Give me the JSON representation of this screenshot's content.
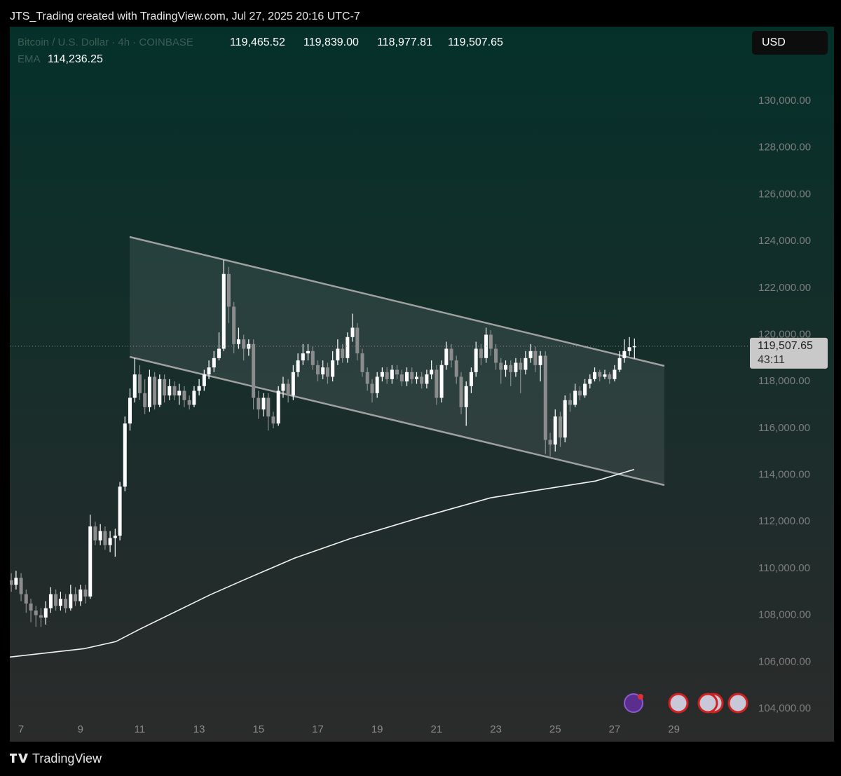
{
  "header": "JTS_Trading created with TradingView.com, Jul 27, 2025 20:16 UTC-7",
  "footer": "TradingView",
  "currency_button": "USD",
  "legend": {
    "symbol": "Bitcoin / U.S. Dollar · 4h · COINBASE",
    "ohlc": [
      "119,465.52",
      "119,839.00",
      "118,977.81",
      "119,507.65"
    ],
    "ema_name": "EMA",
    "ema_value": "114,236.25"
  },
  "last_price_label": "119,507.65",
  "countdown": "43:11",
  "chart_data": {
    "type": "candlestick",
    "x": [
      6.67,
      6.83,
      7,
      7.17,
      7.33,
      7.5,
      7.67,
      7.83,
      8,
      8.17,
      8.33,
      8.5,
      8.67,
      8.83,
      9,
      9.17,
      9.33,
      9.5,
      9.67,
      9.83,
      10,
      10.17,
      10.33,
      10.5,
      10.67,
      10.83,
      11,
      11.17,
      11.33,
      11.5,
      11.67,
      11.83,
      12,
      12.17,
      12.33,
      12.5,
      12.67,
      12.83,
      13,
      13.17,
      13.33,
      13.5,
      13.67,
      13.83,
      14,
      14.17,
      14.33,
      14.5,
      14.67,
      14.83,
      15,
      15.17,
      15.33,
      15.5,
      15.67,
      15.83,
      16,
      16.17,
      16.33,
      16.5,
      16.67,
      16.83,
      17,
      17.17,
      17.33,
      17.5,
      17.67,
      17.83,
      18,
      18.17,
      18.33,
      18.5,
      18.67,
      18.83,
      19,
      19.17,
      19.33,
      19.5,
      19.67,
      19.83,
      20,
      20.17,
      20.33,
      20.5,
      20.67,
      20.83,
      21,
      21.17,
      21.33,
      21.5,
      21.67,
      21.83,
      22,
      22.17,
      22.33,
      22.5,
      22.67,
      22.83,
      23,
      23.17,
      23.33,
      23.5,
      23.67,
      23.83,
      24,
      24.17,
      24.33,
      24.5,
      24.67,
      24.83,
      25,
      25.17,
      25.33,
      25.5,
      25.67,
      25.83,
      26,
      26.17,
      26.33,
      26.5,
      26.67,
      26.83,
      27,
      27.17,
      27.33,
      27.5,
      27.67
    ],
    "open": [
      109500,
      109300,
      109600,
      108900,
      108500,
      108200,
      108000,
      107900,
      108300,
      108900,
      108400,
      108700,
      108300,
      108900,
      108600,
      109100,
      108800,
      111800,
      111200,
      111600,
      111000,
      111300,
      111400,
      113500,
      116200,
      117300,
      118300,
      117500,
      116900,
      118200,
      117000,
      118100,
      117400,
      117800,
      117400,
      117600,
      117200,
      117000,
      117600,
      117800,
      118300,
      118600,
      119000,
      119400,
      122600,
      121200,
      119600,
      119800,
      119400,
      119600,
      117300,
      116800,
      117300,
      116500,
      116200,
      117600,
      117900,
      117400,
      118400,
      118900,
      119200,
      119300,
      118700,
      118300,
      118600,
      118200,
      118900,
      119400,
      119000,
      119900,
      120300,
      119200,
      118400,
      117900,
      117500,
      118200,
      118400,
      118100,
      118500,
      118300,
      118000,
      118400,
      118100,
      118200,
      117900,
      118300,
      118500,
      117300,
      118700,
      119400,
      118900,
      118200,
      116900,
      117800,
      118400,
      119400,
      119000,
      120000,
      119400,
      118800,
      118500,
      118700,
      118400,
      118800,
      118500,
      119000,
      119300,
      118700,
      119100,
      115500,
      115300,
      116500,
      115600,
      117200,
      117000,
      117600,
      117400,
      117900,
      118100,
      118400,
      118200,
      118300,
      118100,
      118500,
      119000,
      119300,
      119465.52
    ],
    "high": [
      109800,
      109900,
      109800,
      109100,
      108700,
      108400,
      108300,
      108600,
      109200,
      109100,
      109000,
      108900,
      109300,
      109200,
      109300,
      109300,
      112300,
      112000,
      111900,
      111800,
      111600,
      111700,
      113700,
      116500,
      117700,
      119000,
      118700,
      118100,
      118500,
      118400,
      118300,
      118300,
      118100,
      118000,
      117900,
      117800,
      117400,
      117800,
      118100,
      118500,
      118900,
      119300,
      120100,
      123200,
      122900,
      121400,
      120300,
      120000,
      119800,
      119800,
      117600,
      117500,
      117500,
      116700,
      117800,
      118200,
      118100,
      118700,
      119200,
      119600,
      119600,
      119500,
      118900,
      118900,
      118800,
      119300,
      119800,
      119600,
      120100,
      120900,
      120500,
      119400,
      118600,
      118100,
      118400,
      118600,
      118600,
      118700,
      118700,
      118500,
      118600,
      118600,
      118400,
      118400,
      118500,
      118900,
      118700,
      118900,
      119700,
      119600,
      119100,
      118400,
      118000,
      118600,
      119700,
      119600,
      120300,
      120200,
      119600,
      119000,
      118900,
      118900,
      119000,
      119000,
      119300,
      119600,
      119500,
      119300,
      119300,
      115800,
      116800,
      116700,
      117400,
      117500,
      117900,
      117800,
      118100,
      118300,
      118600,
      118500,
      118500,
      118400,
      118700,
      119300,
      119800,
      119900,
      119839
    ],
    "low": [
      109000,
      109100,
      108600,
      108100,
      107700,
      107500,
      107500,
      107600,
      108100,
      108200,
      108200,
      108100,
      108200,
      108400,
      108400,
      108500,
      108700,
      111000,
      111000,
      110800,
      110700,
      110500,
      111200,
      113300,
      115900,
      117100,
      117200,
      116600,
      116700,
      116800,
      116900,
      117100,
      117200,
      117200,
      117000,
      116900,
      116800,
      116900,
      117400,
      117600,
      118100,
      118400,
      118900,
      119300,
      120500,
      119200,
      119400,
      118900,
      119100,
      116800,
      116400,
      116500,
      115900,
      116000,
      116100,
      117300,
      117100,
      117200,
      118200,
      118700,
      118900,
      118500,
      118000,
      118100,
      117900,
      118000,
      118700,
      118800,
      118800,
      119700,
      118900,
      118200,
      117600,
      117100,
      117300,
      118000,
      117900,
      117900,
      118100,
      117800,
      117800,
      117900,
      117900,
      117700,
      117700,
      118100,
      117000,
      117100,
      118500,
      118600,
      117900,
      116600,
      116100,
      117500,
      118200,
      118700,
      118800,
      119100,
      118500,
      117900,
      118200,
      117800,
      118200,
      117500,
      118300,
      118800,
      118400,
      118000,
      114900,
      114800,
      115000,
      115200,
      115400,
      116700,
      116900,
      117200,
      117300,
      117700,
      118000,
      118000,
      118100,
      117900,
      118000,
      118400,
      118800,
      119100,
      118977.81
    ],
    "close": [
      109300,
      109600,
      108900,
      108500,
      108200,
      108000,
      107900,
      108300,
      108900,
      108400,
      108700,
      108300,
      108900,
      108600,
      109100,
      108800,
      111800,
      111200,
      111600,
      111000,
      111300,
      111400,
      113500,
      116200,
      117300,
      118300,
      117500,
      116900,
      118200,
      117000,
      118100,
      117400,
      117800,
      117400,
      117600,
      117200,
      117000,
      117600,
      117800,
      118300,
      118600,
      119000,
      119400,
      122600,
      121200,
      119600,
      119800,
      119400,
      119600,
      117300,
      116800,
      117300,
      116500,
      116200,
      117600,
      117900,
      117400,
      118400,
      118900,
      119200,
      119300,
      118700,
      118300,
      118600,
      118200,
      118900,
      119400,
      119000,
      119900,
      120300,
      119200,
      118400,
      117900,
      117500,
      118200,
      118400,
      118100,
      118500,
      118300,
      118000,
      118400,
      118100,
      118200,
      117900,
      118300,
      118500,
      117300,
      118700,
      119400,
      118900,
      118200,
      116900,
      117800,
      118400,
      119400,
      119000,
      120000,
      119400,
      118800,
      118500,
      118700,
      118400,
      118800,
      118500,
      119000,
      119300,
      118700,
      119100,
      115500,
      115300,
      116500,
      115600,
      117200,
      117000,
      117600,
      117400,
      117900,
      118100,
      118400,
      118200,
      118300,
      118100,
      118500,
      119000,
      119300,
      119465.52,
      119507.65
    ],
    "up_color": "#ffffff",
    "down_color": "#8c8c8c",
    "ema": {
      "x": [
        6.62,
        9.13,
        10.19,
        11.01,
        13.38,
        14.56,
        16.21,
        18.1,
        20.46,
        22.82,
        24.71,
        26.36,
        27.66
      ],
      "values": [
        106210,
        106570,
        106870,
        107410,
        108880,
        109540,
        110440,
        111280,
        112180,
        113020,
        113410,
        113740,
        114236.25
      ],
      "color": "#f2f2f2"
    },
    "xlim": [
      6.62,
      31.56
    ],
    "xticks": [
      7,
      9,
      11,
      13,
      15,
      17,
      19,
      21,
      23,
      25,
      27,
      29
    ],
    "ylim": [
      103580,
      133180
    ],
    "yticks": [
      {
        "value": 104000,
        "label": "104,000.00"
      },
      {
        "value": 106000,
        "label": "106,000.00"
      },
      {
        "value": 108000,
        "label": "108,000.00"
      },
      {
        "value": 110000,
        "label": "110,000.00"
      },
      {
        "value": 112000,
        "label": "112,000.00"
      },
      {
        "value": 114000,
        "label": "114,000.00"
      },
      {
        "value": 116000,
        "label": "116,000.00"
      },
      {
        "value": 118000,
        "label": "118,000.00"
      },
      {
        "value": 120000,
        "label": "120,000.00"
      },
      {
        "value": 122000,
        "label": "122,000.00"
      },
      {
        "value": 124000,
        "label": "124,000.00"
      },
      {
        "value": 126000,
        "label": "126,000.00"
      },
      {
        "value": 128000,
        "label": "128,000.00"
      },
      {
        "value": 130000,
        "label": "130,000.00"
      }
    ],
    "grid": false
  }
}
